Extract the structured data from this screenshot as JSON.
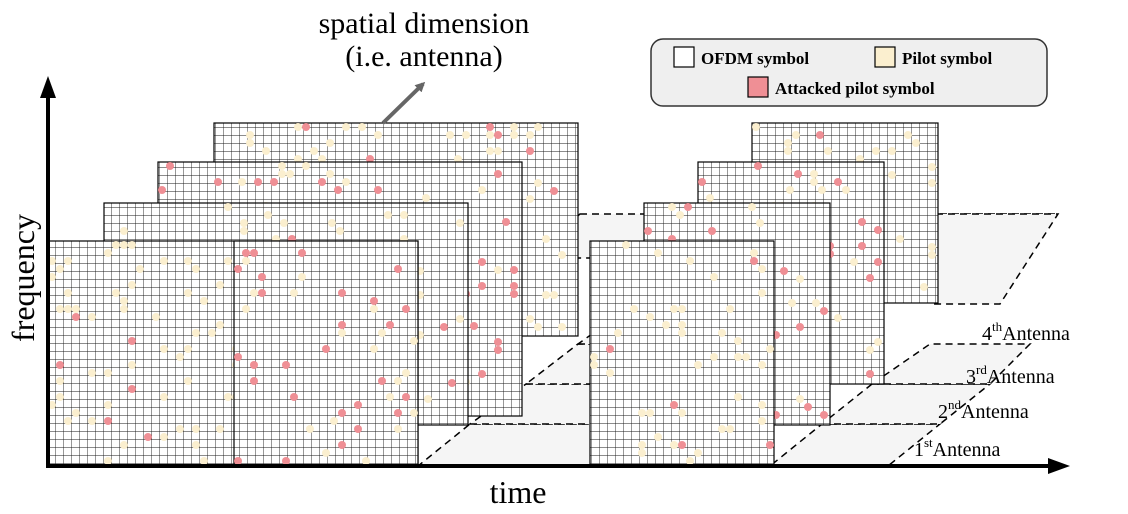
{
  "spatial_label": {
    "line1": "spatial dimension",
    "line2": "(i.e. antenna)"
  },
  "legend": {
    "ofdm": "OFDM symbol",
    "pilot": "Pilot symbol",
    "attacked": "Attacked pilot symbol"
  },
  "axes": {
    "y": "frequency",
    "x": "time"
  },
  "antennas": [
    {
      "num": "1",
      "sup": "st",
      "text": "Antenna"
    },
    {
      "num": "2",
      "sup": "nd",
      "text": "Antenna"
    },
    {
      "num": "3",
      "sup": "rd",
      "text": "Antenna"
    },
    {
      "num": "4",
      "sup": "th",
      "text": "Antenna"
    }
  ],
  "colors": {
    "pilot": "#fbefcf",
    "attacked": "#ef8f95",
    "grid": "#1a1a1a",
    "legend_bg": "#efefef",
    "plane_fill": "#f5f5f5"
  }
}
